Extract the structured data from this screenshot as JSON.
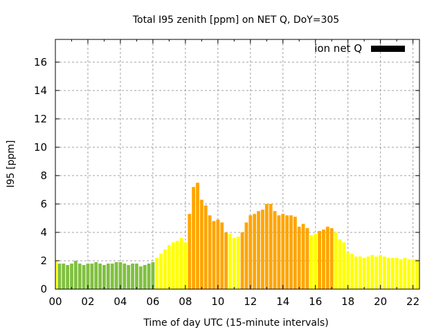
{
  "chart_data": {
    "type": "bar",
    "title": "Total I95 zenith [ppm] on NET Q, DoY=305",
    "xlabel": "Time of day UTC (15-minute intervals)",
    "ylabel": "I95 [ppm]",
    "ylim": [
      0,
      17.6
    ],
    "xlim_hours": [
      0,
      22.4
    ],
    "grid": true,
    "legend": {
      "label": "ion net Q",
      "color": "#000000",
      "placement": "top-right"
    },
    "x_tick_labels": [
      "00",
      "02",
      "04",
      "06",
      "08",
      "10",
      "12",
      "14",
      "16",
      "18",
      "20",
      "22"
    ],
    "y_tick_labels": [
      "0",
      "2",
      "4",
      "6",
      "8",
      "10",
      "12",
      "14",
      "16"
    ],
    "y_tick_values": [
      0,
      2,
      4,
      6,
      8,
      10,
      12,
      14,
      16
    ],
    "interval_minutes": 15,
    "colors": {
      "green": "#80c040",
      "yellow": "#ffff00",
      "orange": "#ffa500"
    },
    "values": [
      2.0,
      1.8,
      1.8,
      1.7,
      1.8,
      2.0,
      1.8,
      1.7,
      1.8,
      1.8,
      1.9,
      1.8,
      1.7,
      1.8,
      1.8,
      1.9,
      1.9,
      1.8,
      1.7,
      1.8,
      1.8,
      1.6,
      1.7,
      1.8,
      1.9,
      2.2,
      2.5,
      2.8,
      3.1,
      3.3,
      3.4,
      3.6,
      3.3,
      5.3,
      7.2,
      7.5,
      6.3,
      5.9,
      5.2,
      4.8,
      4.9,
      4.7,
      4.0,
      3.9,
      3.6,
      3.7,
      4.0,
      4.7,
      5.2,
      5.3,
      5.5,
      5.6,
      6.0,
      6.0,
      5.5,
      5.2,
      5.3,
      5.2,
      5.2,
      5.1,
      4.4,
      4.6,
      4.3,
      3.8,
      3.9,
      4.1,
      4.2,
      4.4,
      4.3,
      4.0,
      3.5,
      3.3,
      2.6,
      2.5,
      2.3,
      2.3,
      2.2,
      2.3,
      2.4,
      2.3,
      2.4,
      2.3,
      2.2,
      2.2,
      2.2,
      2.1,
      2.2,
      2.1,
      2.1,
      2.1
    ],
    "color_classes": [
      "yellow",
      "green",
      "green",
      "green",
      "green",
      "green",
      "green",
      "green",
      "green",
      "green",
      "green",
      "green",
      "green",
      "green",
      "green",
      "green",
      "green",
      "green",
      "green",
      "green",
      "green",
      "green",
      "green",
      "green",
      "green",
      "yellow",
      "yellow",
      "yellow",
      "yellow",
      "yellow",
      "yellow",
      "yellow",
      "yellow",
      "orange",
      "orange",
      "orange",
      "orange",
      "orange",
      "orange",
      "orange",
      "orange",
      "orange",
      "orange",
      "yellow",
      "yellow",
      "yellow",
      "orange",
      "orange",
      "orange",
      "orange",
      "orange",
      "orange",
      "orange",
      "orange",
      "orange",
      "orange",
      "orange",
      "orange",
      "orange",
      "orange",
      "orange",
      "orange",
      "orange",
      "yellow",
      "yellow",
      "orange",
      "orange",
      "orange",
      "orange",
      "yellow",
      "yellow",
      "yellow",
      "yellow",
      "yellow",
      "yellow",
      "yellow",
      "yellow",
      "yellow",
      "yellow",
      "yellow",
      "yellow",
      "yellow",
      "yellow",
      "yellow",
      "yellow",
      "yellow",
      "yellow",
      "yellow",
      "yellow",
      "yellow"
    ]
  }
}
